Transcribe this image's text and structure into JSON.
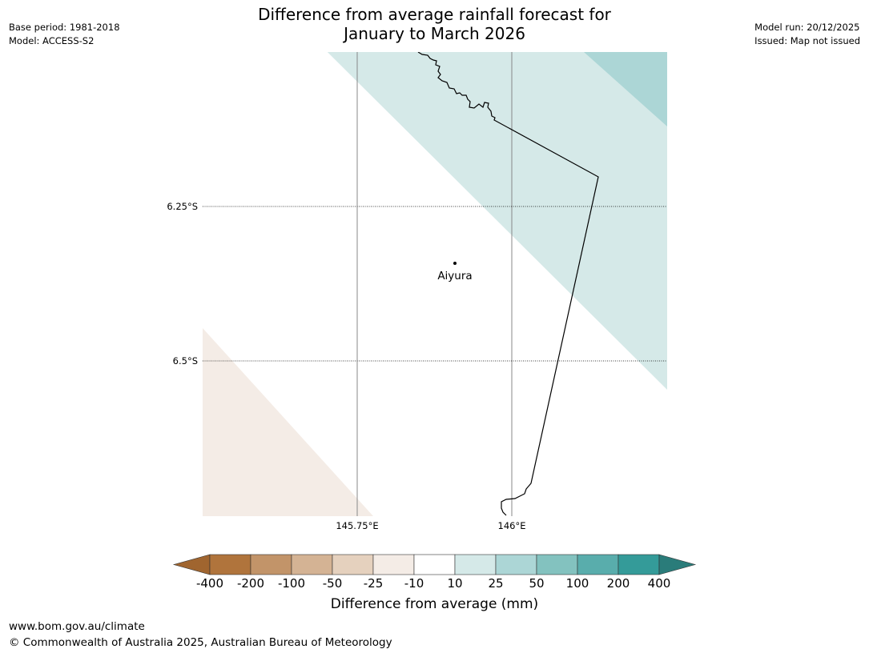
{
  "title": {
    "line1": "Difference from average rainfall forecast for",
    "line2": "January to March 2026"
  },
  "meta_left": {
    "base_period": "Base period: 1981-2018",
    "model": "Model: ACCESS-S2"
  },
  "meta_right": {
    "model_run": "Model run: 20/12/2025",
    "issued": "Issued: Map not issued"
  },
  "map": {
    "lat_labels": [
      "6.25°S",
      "6.5°S"
    ],
    "lon_labels": [
      "145.75°E",
      "146°E"
    ],
    "place": {
      "name": "Aiyura",
      "icon": "location-dot-icon"
    },
    "colors": {
      "light_teal_zone": "#d5e9e8",
      "mid_teal_zone": "#acd6d6",
      "light_brown_zone": "#f4ece6",
      "boundary": "#000000",
      "gridline": "#888888"
    }
  },
  "colorbar": {
    "title": "Difference from average (mm)",
    "ticks": [
      "-400",
      "-200",
      "-100",
      "-50",
      "-25",
      "-10",
      "10",
      "25",
      "50",
      "100",
      "200",
      "400"
    ],
    "colors": [
      "#a0652f",
      "#b0743c",
      "#c29469",
      "#d4b394",
      "#e5d1be",
      "#f4ece6",
      "#ffffff",
      "#d5e9e8",
      "#acd6d6",
      "#83c2bf",
      "#59adac",
      "#349b99",
      "#2a7c7a"
    ]
  },
  "footer": {
    "url": "www.bom.gov.au/climate",
    "copyright": "© Commonwealth of Australia 2025, Australian Bureau of Meteorology"
  }
}
